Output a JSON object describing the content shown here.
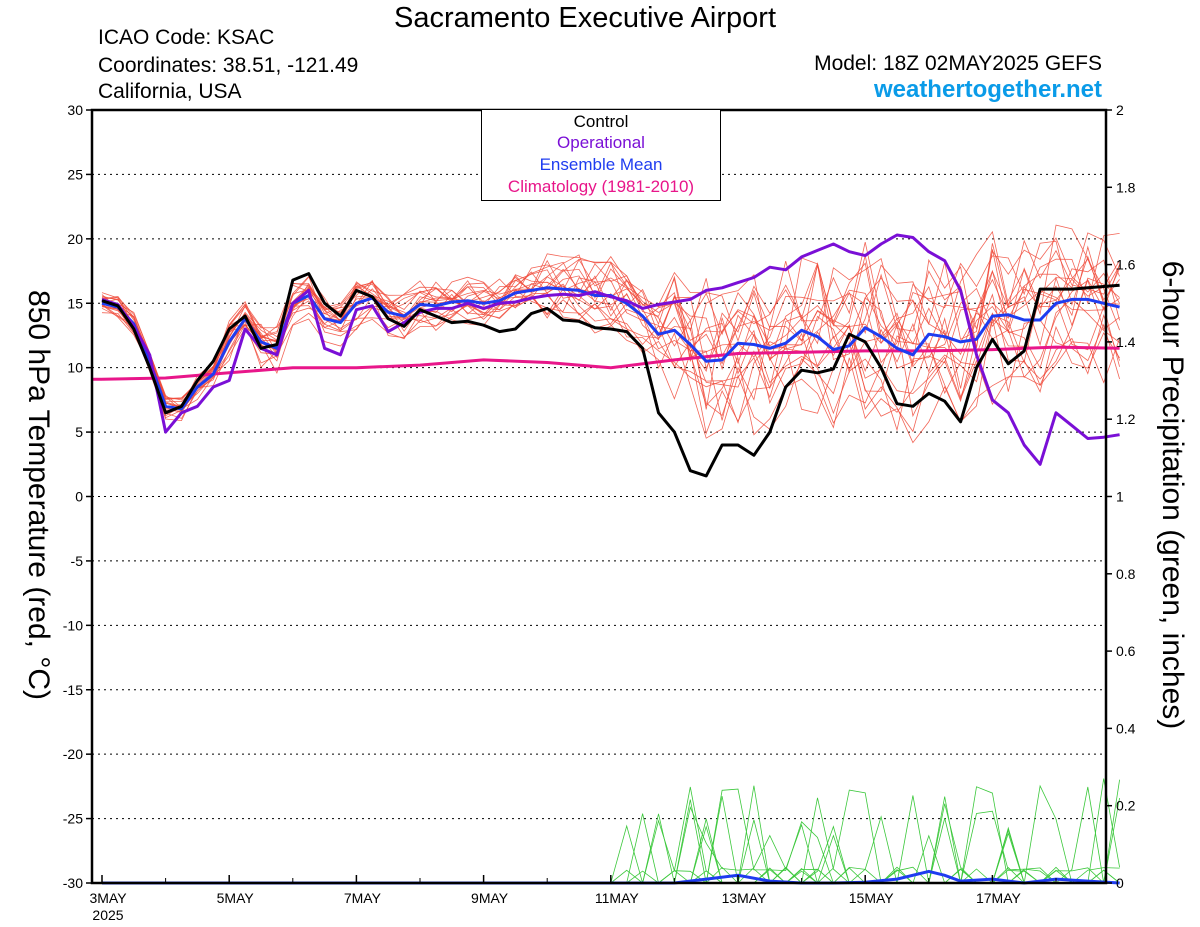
{
  "header": {
    "title": "Sacramento Executive Airport",
    "icao": "ICAO Code: KSAC",
    "coordinates": "Coordinates: 38.51, -121.49",
    "location": "California, USA",
    "model": "Model: 18Z 02MAY2025 GEFS",
    "site": "weathertogether.net"
  },
  "legend": {
    "control": "Control",
    "operational": "Operational",
    "ensemble_mean": "Ensemble Mean",
    "climatology": "Climatology (1981-2010)"
  },
  "colors": {
    "control": "#000000",
    "operational": "#7a0fd6",
    "ensemble_mean": "#1e3cf0",
    "climatology": "#e8168a",
    "members": "#f04a3a",
    "precip": "#3cc83c",
    "site": "#0a9be8"
  },
  "chart_data": {
    "type": "line",
    "title": "Sacramento Executive Airport",
    "ylabel": "850 hPa Temperature (red, °C)",
    "y2label": "6-hour Precipitation (green, inches)",
    "ylim": [
      -30,
      30
    ],
    "y2lim": [
      0,
      2
    ],
    "xlim": [
      0,
      16
    ],
    "yticks": [
      -30,
      -25,
      -20,
      -15,
      -10,
      -5,
      0,
      5,
      10,
      15,
      20,
      25,
      30
    ],
    "y2ticks": [
      "0",
      "0.2",
      "0.4",
      "0.6",
      "0.8",
      "1",
      "1.2",
      "1.4",
      "1.6",
      "1.8",
      "2"
    ],
    "xticks": [
      {
        "x": 0,
        "label": "3MAY",
        "sub": "2025"
      },
      {
        "x": 2,
        "label": "5MAY"
      },
      {
        "x": 4,
        "label": "7MAY"
      },
      {
        "x": 6,
        "label": "9MAY"
      },
      {
        "x": 8,
        "label": "11MAY"
      },
      {
        "x": 10,
        "label": "13MAY"
      },
      {
        "x": 12,
        "label": "15MAY"
      },
      {
        "x": 14,
        "label": "17MAY"
      }
    ],
    "grid": "dashed horizontal",
    "legend_placement": "top-center",
    "series": [
      {
        "name": "Control",
        "x": [
          0,
          0.25,
          0.5,
          0.75,
          1,
          1.25,
          1.5,
          1.75,
          2,
          2.25,
          2.5,
          2.75,
          3,
          3.25,
          3.5,
          3.75,
          4,
          4.25,
          4.5,
          4.75,
          5,
          5.25,
          5.5,
          5.75,
          6,
          6.25,
          6.5,
          6.75,
          7,
          7.25,
          7.5,
          7.75,
          8,
          8.25,
          8.5,
          8.75,
          9,
          9.25,
          9.5,
          9.75,
          10,
          10.25,
          10.5,
          10.75,
          11,
          11.25,
          11.5,
          11.75,
          12,
          12.25,
          12.5,
          12.75,
          13,
          13.25,
          13.5,
          13.75,
          14,
          14.25,
          14.5,
          14.75,
          15,
          15.25,
          15.5,
          15.75,
          16
        ],
        "y": [
          15.2,
          14.8,
          13.0,
          10.0,
          6.5,
          7.0,
          9.0,
          10.5,
          13.0,
          14.0,
          11.5,
          11.8,
          16.8,
          17.3,
          15.0,
          14.0,
          16.0,
          15.5,
          13.8,
          13.2,
          14.5,
          14.0,
          13.5,
          13.6,
          13.3,
          12.8,
          13.0,
          14.2,
          14.6,
          13.7,
          13.6,
          13.1,
          13.0,
          12.8,
          11.5,
          6.5,
          5.0,
          2.0,
          1.6,
          4.0,
          4.0,
          3.2,
          5.0,
          8.5,
          9.8,
          9.6,
          9.9,
          12.6,
          12.0,
          10.0,
          7.2,
          7.0,
          8.0,
          7.4,
          5.8,
          10.0,
          12.2,
          10.3,
          11.3,
          16.1,
          16.1,
          16.1,
          16.2,
          16.3,
          16.4
        ]
      },
      {
        "name": "Operational",
        "x": [
          0,
          0.25,
          0.5,
          0.75,
          1,
          1.25,
          1.5,
          1.75,
          2,
          2.25,
          2.5,
          2.75,
          3,
          3.25,
          3.5,
          3.75,
          4,
          4.25,
          4.5,
          4.75,
          5,
          5.25,
          5.5,
          5.75,
          6,
          6.25,
          6.5,
          6.75,
          7,
          7.25,
          7.5,
          7.75,
          8,
          8.25,
          8.5,
          8.75,
          9,
          9.25,
          9.5,
          9.75,
          10,
          10.25,
          10.5,
          10.75,
          11,
          11.25,
          11.5,
          11.75,
          12,
          12.25,
          12.5,
          12.75,
          13,
          13.25,
          13.5,
          13.75,
          14,
          14.25,
          14.5,
          14.75,
          15,
          15.25,
          15.5,
          15.75,
          16
        ],
        "y": [
          15.3,
          14.9,
          13.2,
          11.0,
          5.0,
          6.5,
          7.0,
          8.5,
          9.0,
          13.0,
          11.5,
          11.0,
          15.0,
          16.0,
          11.5,
          11.0,
          14.5,
          14.8,
          12.8,
          13.5,
          14.3,
          14.6,
          14.6,
          15.0,
          14.6,
          15.0,
          15.1,
          15.4,
          15.6,
          15.7,
          15.6,
          15.9,
          15.5,
          15.2,
          14.6,
          14.9,
          15.1,
          15.3,
          16.0,
          16.2,
          16.6,
          17.0,
          17.8,
          17.6,
          18.6,
          19.1,
          19.6,
          19.0,
          18.7,
          19.6,
          20.3,
          20.1,
          19.0,
          18.3,
          16.0,
          11.0,
          7.5,
          6.5,
          4.0,
          2.5,
          6.5,
          5.5,
          4.5,
          4.6,
          4.8
        ]
      },
      {
        "name": "Ensemble Mean",
        "x": [
          0,
          0.25,
          0.5,
          0.75,
          1,
          1.25,
          1.5,
          1.75,
          2,
          2.25,
          2.5,
          2.75,
          3,
          3.25,
          3.5,
          3.75,
          4,
          4.25,
          4.5,
          4.75,
          5,
          5.25,
          5.5,
          5.75,
          6,
          6.25,
          6.5,
          6.75,
          7,
          7.25,
          7.5,
          7.75,
          8,
          8.25,
          8.5,
          8.75,
          9,
          9.25,
          9.5,
          9.75,
          10,
          10.25,
          10.5,
          10.75,
          11,
          11.25,
          11.5,
          11.75,
          12,
          12.25,
          12.5,
          12.75,
          13,
          13.25,
          13.5,
          13.75,
          14,
          14.25,
          14.5,
          14.75,
          15,
          15.25,
          15.5,
          15.75,
          16
        ],
        "y": [
          15.0,
          14.7,
          13.4,
          10.5,
          7.0,
          6.8,
          8.5,
          9.5,
          12.0,
          13.8,
          12.0,
          11.5,
          15.0,
          15.6,
          13.8,
          13.5,
          15.0,
          15.4,
          14.3,
          14.0,
          14.9,
          14.8,
          15.1,
          15.2,
          15.0,
          15.2,
          15.8,
          16.0,
          16.2,
          16.1,
          16.0,
          15.6,
          15.6,
          15.0,
          14.0,
          12.6,
          12.9,
          11.8,
          10.5,
          10.6,
          11.9,
          11.8,
          11.5,
          11.9,
          12.9,
          12.4,
          11.4,
          11.7,
          13.1,
          12.4,
          11.5,
          11.0,
          12.6,
          12.4,
          12.0,
          12.2,
          14.0,
          14.1,
          13.7,
          13.7,
          15.0,
          15.3,
          15.3,
          15.0,
          14.7
        ]
      },
      {
        "name": "Climatology (1981-2010)",
        "x": [
          0,
          1,
          2,
          3,
          4,
          5,
          6,
          7,
          8,
          9,
          10,
          11,
          12,
          13,
          14,
          15,
          16
        ],
        "y": [
          9.1,
          9.2,
          9.6,
          10.0,
          10.0,
          10.2,
          10.6,
          10.4,
          10.0,
          10.6,
          11.1,
          11.2,
          11.3,
          11.3,
          11.4,
          11.6,
          11.5
        ]
      }
    ],
    "member_count": 20,
    "precipitation": {
      "units": "inches",
      "ensemble_mean": {
        "x": [
          0,
          8,
          9,
          9.5,
          10,
          10.5,
          11,
          11.5,
          12,
          12.5,
          13,
          13.25,
          13.5,
          14,
          14.5,
          15,
          15.5,
          16
        ],
        "y": [
          0,
          0,
          0,
          0.01,
          0.02,
          0.005,
          0,
          0,
          0.002,
          0.01,
          0.03,
          0.02,
          0.005,
          0.01,
          0,
          0.01,
          0.005,
          0
        ]
      },
      "max_member_peak": 0.28
    }
  }
}
